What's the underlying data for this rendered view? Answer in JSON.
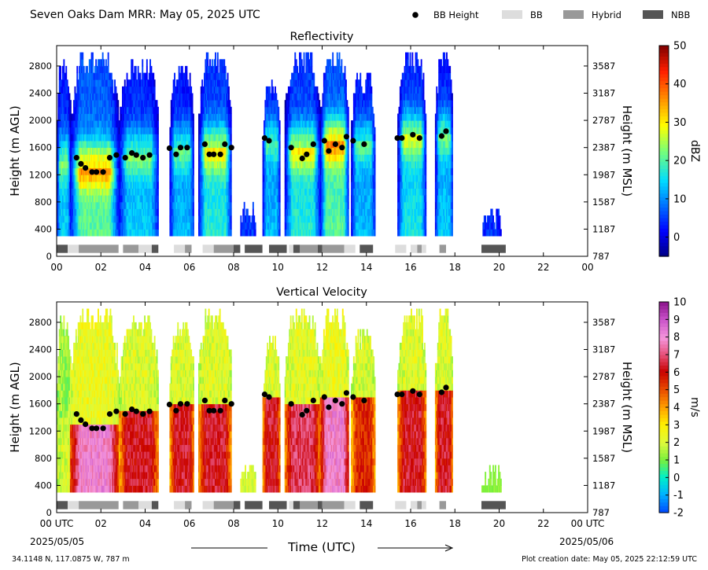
{
  "header": {
    "title": "Seven Oaks Dam MRR:  May 05, 2025 UTC",
    "legend": [
      {
        "label": "BB Height",
        "marker": "dot",
        "color": "#000000"
      },
      {
        "label": "BB",
        "marker": "box",
        "color": "#dddddd"
      },
      {
        "label": "Hybrid",
        "marker": "box",
        "color": "#999999"
      },
      {
        "label": "NBB",
        "marker": "box",
        "color": "#555555"
      }
    ]
  },
  "footer": {
    "location": "34.1148 N, 117.0875 W, 787 m",
    "creation": "Plot creation date: May 05, 2025 22:12:59 UTC",
    "xlabel": "Time (UTC)",
    "start_date": "2025/05/05",
    "end_date": "2025/05/06"
  },
  "chart_data": [
    {
      "type": "heatmap",
      "title": "Reflectivity",
      "ylabel": "Height (m AGL)",
      "ylabel_right": "Height (m MSL)",
      "xlim": [
        0,
        24
      ],
      "ylim": [
        0,
        3100
      ],
      "x_ticks": [
        "00",
        "02",
        "04",
        "06",
        "08",
        "10",
        "12",
        "14",
        "16",
        "18",
        "20",
        "22",
        "00"
      ],
      "y_ticks": [
        0,
        400,
        800,
        1200,
        1600,
        2000,
        2400,
        2800
      ],
      "y_ticks_right": [
        787,
        1187,
        1587,
        1987,
        2387,
        2787,
        3187,
        3587
      ],
      "colorbar": {
        "label": "dBZ",
        "min": -5,
        "max": 50,
        "ticks": [
          0,
          10,
          20,
          30,
          40,
          50
        ],
        "colormap": "jet"
      },
      "precip_segments": [
        {
          "x0": 0.0,
          "x1": 0.6,
          "top": 2900,
          "peak": 22,
          "bb": 1400
        },
        {
          "x0": 0.6,
          "x1": 2.8,
          "top": 3000,
          "peak": 34,
          "bb": 1300
        },
        {
          "x0": 2.8,
          "x1": 4.6,
          "top": 2900,
          "peak": 22,
          "bb": 1480
        },
        {
          "x0": 5.1,
          "x1": 6.2,
          "top": 2800,
          "peak": 20,
          "bb": 1550
        },
        {
          "x0": 6.4,
          "x1": 7.9,
          "top": 3000,
          "peak": 28,
          "bb": 1550
        },
        {
          "x0": 8.3,
          "x1": 9.0,
          "top": 800,
          "peak": 8,
          "bb": 0
        },
        {
          "x0": 9.3,
          "x1": 10.1,
          "top": 2600,
          "peak": 20,
          "bb": 1700
        },
        {
          "x0": 10.3,
          "x1": 11.9,
          "top": 3000,
          "peak": 28,
          "bb": 1550
        },
        {
          "x0": 11.9,
          "x1": 13.2,
          "top": 3000,
          "peak": 34,
          "bb": 1650
        },
        {
          "x0": 13.3,
          "x1": 14.4,
          "top": 2700,
          "peak": 20,
          "bb": 1650
        },
        {
          "x0": 15.4,
          "x1": 16.7,
          "top": 3000,
          "peak": 26,
          "bb": 1740
        },
        {
          "x0": 17.1,
          "x1": 17.9,
          "top": 3000,
          "peak": 22,
          "bb": 1780
        },
        {
          "x0": 19.2,
          "x1": 20.1,
          "top": 700,
          "peak": 6,
          "bb": 0
        }
      ]
    },
    {
      "type": "heatmap",
      "title": "Vertical Velocity",
      "ylabel": "Height (m AGL)",
      "ylabel_right": "Height (m MSL)",
      "xlim": [
        0,
        24
      ],
      "ylim": [
        0,
        3100
      ],
      "x_ticks": [
        "00 UTC",
        "02",
        "04",
        "06",
        "08",
        "10",
        "12",
        "14",
        "16",
        "18",
        "20",
        "22",
        "00 UTC"
      ],
      "y_ticks": [
        0,
        400,
        800,
        1200,
        1600,
        2000,
        2400,
        2800
      ],
      "y_ticks_right": [
        787,
        1187,
        1587,
        1987,
        2387,
        2787,
        3187,
        3587
      ],
      "colorbar": {
        "label": "m/s",
        "min": -2,
        "max": 10,
        "ticks": [
          -2,
          -1,
          0,
          1,
          2,
          3,
          4,
          5,
          6,
          7,
          8,
          9,
          10
        ],
        "colormap": "velocity"
      },
      "precip_segments": [
        {
          "x0": 0.0,
          "x1": 0.6,
          "top": 2900,
          "peak": 2.0,
          "bb": 1400
        },
        {
          "x0": 0.6,
          "x1": 2.8,
          "top": 3000,
          "peak": 8.0,
          "bb": 1300
        },
        {
          "x0": 2.8,
          "x1": 4.6,
          "top": 2900,
          "peak": 6.3,
          "bb": 1480
        },
        {
          "x0": 5.1,
          "x1": 6.2,
          "top": 2800,
          "peak": 6.3,
          "bb": 1550
        },
        {
          "x0": 6.4,
          "x1": 7.9,
          "top": 3000,
          "peak": 6.3,
          "bb": 1550
        },
        {
          "x0": 8.3,
          "x1": 9.0,
          "top": 800,
          "peak": 2.5,
          "bb": 0
        },
        {
          "x0": 9.3,
          "x1": 10.1,
          "top": 2600,
          "peak": 6.3,
          "bb": 1700
        },
        {
          "x0": 10.3,
          "x1": 11.9,
          "top": 3000,
          "peak": 6.8,
          "bb": 1550
        },
        {
          "x0": 11.9,
          "x1": 13.2,
          "top": 3000,
          "peak": 8.0,
          "bb": 1650
        },
        {
          "x0": 13.3,
          "x1": 14.4,
          "top": 2700,
          "peak": 5.5,
          "bb": 1650
        },
        {
          "x0": 15.4,
          "x1": 16.7,
          "top": 3000,
          "peak": 6.3,
          "bb": 1740
        },
        {
          "x0": 17.1,
          "x1": 17.9,
          "top": 3000,
          "peak": 6.3,
          "bb": 1780
        },
        {
          "x0": 19.2,
          "x1": 20.1,
          "top": 700,
          "peak": 1.5,
          "bb": 0
        }
      ]
    }
  ],
  "bb_height": {
    "times": [
      0.9,
      1.1,
      1.3,
      1.6,
      1.8,
      2.1,
      2.4,
      2.7,
      3.1,
      3.4,
      3.6,
      3.9,
      4.2,
      5.1,
      5.4,
      5.6,
      5.9,
      6.7,
      6.9,
      7.1,
      7.4,
      7.6,
      7.9,
      9.4,
      9.6,
      10.6,
      11.1,
      11.3,
      11.6,
      12.1,
      12.3,
      12.6,
      12.9,
      13.1,
      13.4,
      13.9,
      15.4,
      15.6,
      16.1,
      16.4,
      17.4,
      17.6
    ],
    "heights": [
      1450,
      1360,
      1300,
      1240,
      1240,
      1240,
      1450,
      1490,
      1450,
      1520,
      1490,
      1450,
      1490,
      1590,
      1500,
      1600,
      1600,
      1650,
      1500,
      1500,
      1500,
      1650,
      1600,
      1740,
      1700,
      1600,
      1440,
      1500,
      1650,
      1700,
      1550,
      1650,
      1600,
      1760,
      1700,
      1650,
      1740,
      1740,
      1790,
      1740,
      1770,
      1840
    ]
  },
  "bb_classes": [
    {
      "x0": 0.0,
      "x1": 0.5,
      "cls": "NBB"
    },
    {
      "x0": 0.5,
      "x1": 1.0,
      "cls": "BB"
    },
    {
      "x0": 1.0,
      "x1": 2.8,
      "cls": "Hybrid"
    },
    {
      "x0": 3.0,
      "x1": 3.7,
      "cls": "Hybrid"
    },
    {
      "x0": 3.7,
      "x1": 4.3,
      "cls": "BB"
    },
    {
      "x0": 4.3,
      "x1": 4.6,
      "cls": "NBB"
    },
    {
      "x0": 5.3,
      "x1": 5.8,
      "cls": "BB"
    },
    {
      "x0": 5.8,
      "x1": 6.1,
      "cls": "Hybrid"
    },
    {
      "x0": 6.6,
      "x1": 7.1,
      "cls": "BB"
    },
    {
      "x0": 7.1,
      "x1": 8.0,
      "cls": "Hybrid"
    },
    {
      "x0": 8.0,
      "x1": 8.3,
      "cls": "NBB"
    },
    {
      "x0": 8.5,
      "x1": 9.3,
      "cls": "NBB"
    },
    {
      "x0": 9.6,
      "x1": 10.4,
      "cls": "NBB"
    },
    {
      "x0": 10.5,
      "x1": 10.7,
      "cls": "BB"
    },
    {
      "x0": 10.7,
      "x1": 11.0,
      "cls": "NBB"
    },
    {
      "x0": 11.0,
      "x1": 11.8,
      "cls": "Hybrid"
    },
    {
      "x0": 11.8,
      "x1": 12.0,
      "cls": "NBB"
    },
    {
      "x0": 12.0,
      "x1": 13.0,
      "cls": "Hybrid"
    },
    {
      "x0": 13.0,
      "x1": 13.5,
      "cls": "BB"
    },
    {
      "x0": 13.7,
      "x1": 14.3,
      "cls": "NBB"
    },
    {
      "x0": 15.3,
      "x1": 15.8,
      "cls": "BB"
    },
    {
      "x0": 16.0,
      "x1": 16.3,
      "cls": "BB"
    },
    {
      "x0": 16.3,
      "x1": 16.5,
      "cls": "Hybrid"
    },
    {
      "x0": 16.5,
      "x1": 16.7,
      "cls": "BB"
    },
    {
      "x0": 17.3,
      "x1": 17.6,
      "cls": "Hybrid"
    },
    {
      "x0": 19.2,
      "x1": 20.3,
      "cls": "NBB"
    }
  ]
}
